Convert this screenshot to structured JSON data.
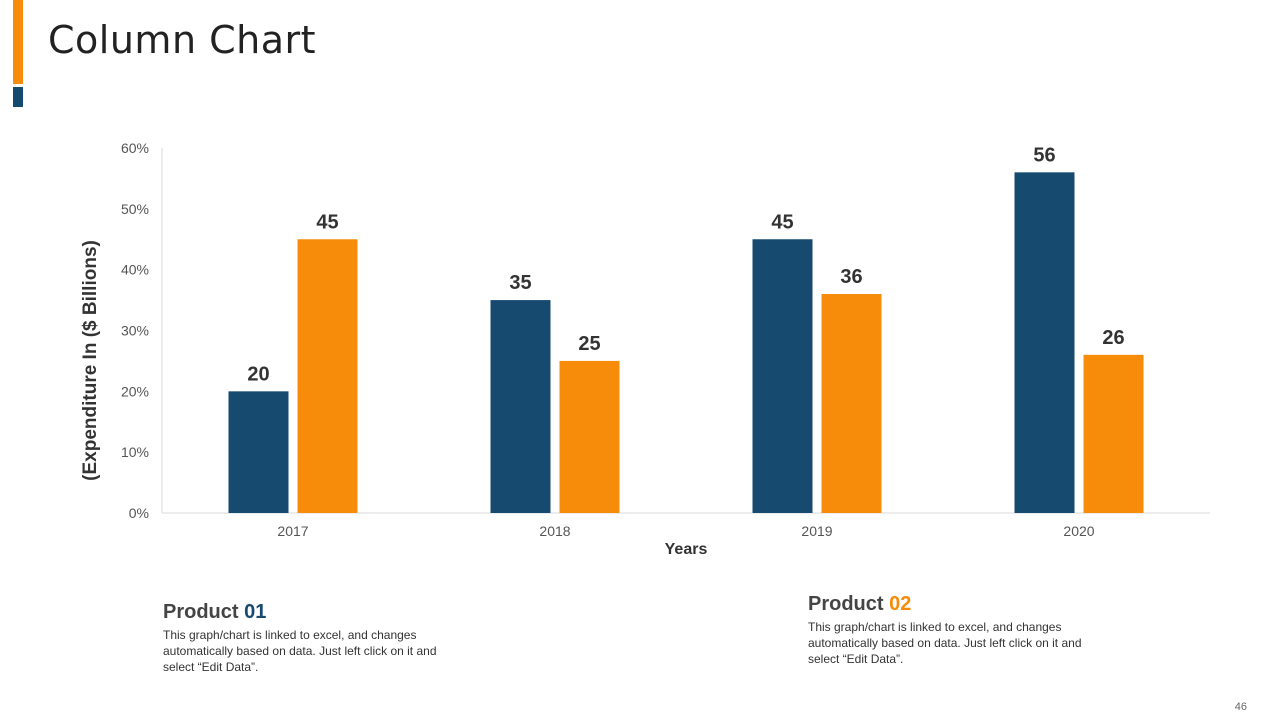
{
  "slide": {
    "title": "Column Chart",
    "page_number": "46"
  },
  "colors": {
    "product_01": "#174a6f",
    "product_02": "#f78c0a",
    "axis": "#d9d9d9",
    "accent_orange": "#f78c0a",
    "accent_blue": "#174a6f"
  },
  "legend": [
    {
      "prefix": "Product",
      "number": "01",
      "description": "This graph/chart is linked to excel, and changes automatically based on data. Just left click on it and select “Edit Data”."
    },
    {
      "prefix": "Product",
      "number": "02",
      "description": "This graph/chart is linked to excel, and changes automatically based on data. Just left click on it and select “Edit Data”."
    }
  ],
  "chart_data": {
    "type": "bar",
    "title": "",
    "xlabel": "Years",
    "ylabel": "(Expenditure In ($ Billions)",
    "categories": [
      "2017",
      "2018",
      "2019",
      "2020"
    ],
    "series": [
      {
        "name": "Product 01",
        "values": [
          20,
          35,
          45,
          56
        ]
      },
      {
        "name": "Product 02",
        "values": [
          45,
          25,
          36,
          26
        ]
      }
    ],
    "ylim": [
      0,
      60
    ],
    "yticks": [
      "0%",
      "10%",
      "20%",
      "30%",
      "40%",
      "50%",
      "60%"
    ],
    "grid": false
  }
}
